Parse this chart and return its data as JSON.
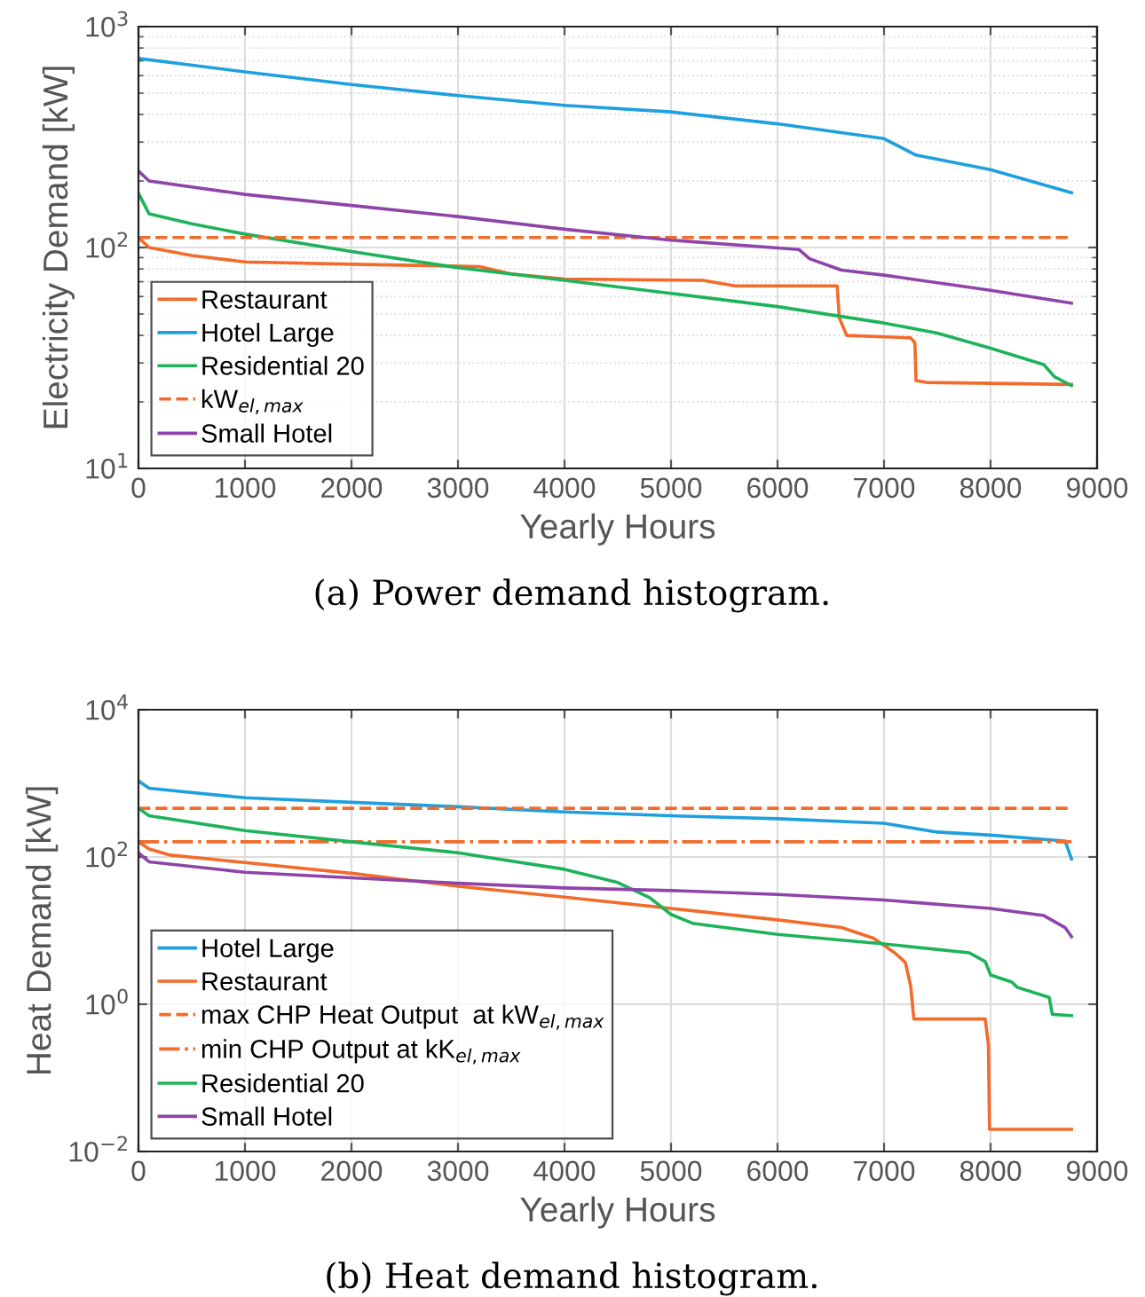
{
  "chart_data": [
    {
      "type": "line",
      "xlabel": "Yearly Hours",
      "ylabel": "Electricity Demand [kW]",
      "log": "y",
      "grid": true,
      "legend": "bottom left",
      "xlim": [
        0,
        9000
      ],
      "xticks": [
        0,
        1000,
        2000,
        3000,
        4000,
        5000,
        6000,
        7000,
        8000,
        9000
      ],
      "ylim": [
        10,
        1000
      ],
      "yticks": [
        {
          "value": 10,
          "label": "10$^{1}$"
        },
        {
          "value": 100,
          "label": "10$^{2}$"
        },
        {
          "value": 1000,
          "label": "10$^{3}$"
        }
      ],
      "annotations": [
        "(a) Power demand histogram."
      ],
      "series": [
        {
          "name": "Restaurant",
          "color": "#f26b2a",
          "x": [
            0,
            100,
            500,
            1000,
            2000,
            3200,
            3500,
            4000,
            5300,
            5600,
            6560,
            6580,
            6650,
            7250,
            7290,
            7300,
            7400,
            8760
          ],
          "values": [
            111,
            100,
            92,
            86,
            84,
            82,
            76,
            72,
            71,
            67,
            67,
            48,
            40,
            39,
            37,
            25,
            24.5,
            24
          ]
        },
        {
          "name": "Hotel Large",
          "color": "#1ea0de",
          "x": [
            0,
            1000,
            2000,
            3000,
            4000,
            5000,
            6000,
            7000,
            7300,
            8000,
            8760
          ],
          "values": [
            718,
            624,
            547,
            487,
            440,
            411,
            363,
            311,
            262,
            225,
            177
          ]
        },
        {
          "name": "Residential 20",
          "color": "#1db35a",
          "x": [
            0,
            100,
            500,
            1000,
            2000,
            3000,
            4000,
            5000,
            6000,
            7000,
            7500,
            8000,
            8500,
            8600,
            8760
          ],
          "values": [
            176,
            142,
            128,
            115,
            96,
            81,
            71,
            62,
            54,
            45.5,
            41,
            35,
            29.5,
            26,
            23.7
          ]
        },
        {
          "name": "kW$_{el,max}$",
          "color": "#f26b2a",
          "line_style": "dashed",
          "x": [
            0,
            8760
          ],
          "values": [
            111,
            111
          ]
        },
        {
          "name": "Small Hotel",
          "color": "#8e44a8",
          "x": [
            0,
            100,
            1000,
            2000,
            3000,
            4000,
            5000,
            6200,
            6300,
            6600,
            7000,
            8000,
            8760
          ],
          "values": [
            222,
            200,
            174,
            155,
            138,
            121,
            108,
            98,
            89,
            79,
            75,
            64,
            56
          ]
        }
      ]
    },
    {
      "type": "line",
      "xlabel": "Yearly Hours",
      "ylabel": "Heat Demand [kW]",
      "log": "y",
      "grid": true,
      "legend": "bottom left",
      "xlim": [
        0,
        9000
      ],
      "xticks": [
        0,
        1000,
        2000,
        3000,
        4000,
        5000,
        6000,
        7000,
        8000,
        9000
      ],
      "ylim": [
        0.01,
        10000
      ],
      "yticks": [
        {
          "value": 0.01,
          "label": "10$^{−2}$"
        },
        {
          "value": 1,
          "label": "10$^{0}$"
        },
        {
          "value": 100,
          "label": "10$^{2}$"
        },
        {
          "value": 10000,
          "label": "10$^{4}$"
        }
      ],
      "annotations": [
        "(b) Heat demand histogram."
      ],
      "series": [
        {
          "name": "Hotel Large",
          "color": "#1ea0de",
          "x": [
            0,
            100,
            1000,
            2000,
            3000,
            4000,
            5000,
            6000,
            7000,
            7500,
            8000,
            8700,
            8760
          ],
          "values": [
            1079,
            857,
            636,
            552,
            481,
            409,
            363,
            331,
            287,
            218,
            198,
            165,
            94
          ]
        },
        {
          "name": "Restaurant",
          "color": "#f26b2a",
          "x": [
            0,
            100,
            300,
            1000,
            2000,
            3000,
            4000,
            5000,
            6000,
            6600,
            6900,
            7100,
            7200,
            7250,
            7280,
            7950,
            7980,
            7990,
            8760
          ],
          "values": [
            161,
            128,
            106,
            84,
            60,
            40,
            28.5,
            20,
            14,
            11,
            7.9,
            5.0,
            3.7,
            1.77,
            0.63,
            0.63,
            0.28,
            0.02,
            0.02
          ]
        },
        {
          "name": "max CHP Heat Output  at kW$_{el,max}$",
          "color": "#f26b2a",
          "line_style": "dashed",
          "x": [
            0,
            8760
          ],
          "values": [
            458,
            458
          ]
        },
        {
          "name": "min CHP Output at kK$_{el,max}$",
          "color": "#f26b2a",
          "line_style": "dashdot",
          "x": [
            0,
            8760
          ],
          "values": [
            161,
            161
          ]
        },
        {
          "name": "Residential 20",
          "color": "#1db35a",
          "x": [
            0,
            100,
            1000,
            2000,
            3000,
            4000,
            4500,
            4800,
            5000,
            5200,
            6000,
            7000,
            7800,
            7950,
            8000,
            8200,
            8250,
            8550,
            8580,
            8760
          ],
          "values": [
            458,
            364,
            228,
            161,
            114,
            68,
            45,
            28,
            16.6,
            12.6,
            8.9,
            6.6,
            5.0,
            3.8,
            2.5,
            2.0,
            1.7,
            1.24,
            0.73,
            0.7
          ]
        },
        {
          "name": "Small Hotel",
          "color": "#8e44a8",
          "x": [
            0,
            100,
            1000,
            2000,
            3000,
            4000,
            5000,
            6000,
            7000,
            8000,
            8500,
            8700,
            8760
          ],
          "values": [
            114,
            86,
            62,
            52,
            44,
            38,
            35,
            31,
            26,
            20,
            16,
            11,
            8.3
          ]
        }
      ]
    }
  ]
}
